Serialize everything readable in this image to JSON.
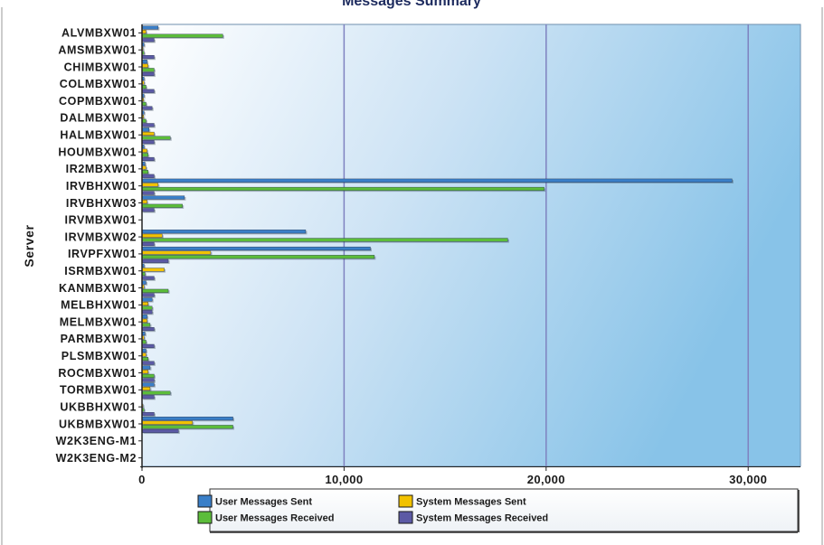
{
  "chart_data": {
    "type": "bar",
    "orientation": "horizontal",
    "title": "Messages Summary",
    "ylabel": "Server",
    "xlabel": "",
    "xlim": [
      0,
      32500
    ],
    "x_ticks": [
      0,
      10000,
      20000,
      30000
    ],
    "x_tick_labels": [
      "0",
      "10,000",
      "20,000",
      "30,000"
    ],
    "grid": "vertical",
    "legend_position": "bottom",
    "categories": [
      "ALVMBXW01",
      "AMSMBXW01",
      "CHIMBXW01",
      "COLMBXW01",
      "COPMBXW01",
      "DALMBXW01",
      "HALMBXW01",
      "HOUMBXW01",
      "IR2MBXW01",
      "IRVBHXW01",
      "IRVBHXW03",
      "IRVMBXW01",
      "IRVMBXW02",
      "IRVPFXW01",
      "ISRMBXW01",
      "KANMBXW01",
      "MELBHXW01",
      "MELMBXW01",
      "PARMBXW01",
      "PLSMBXW01",
      "ROCMBXW01",
      "TORMBXW01",
      "UKBBHXW01",
      "UKBMBXW01",
      "W2K3ENG-M1",
      "W2K3ENG-M2"
    ],
    "series": [
      {
        "name": "User Messages Sent",
        "color": "#3a7fc8",
        "values": [
          800,
          100,
          250,
          100,
          100,
          100,
          350,
          100,
          150,
          29200,
          2100,
          0,
          8100,
          11300,
          100,
          200,
          500,
          250,
          150,
          200,
          400,
          600,
          0,
          4500,
          0,
          0
        ]
      },
      {
        "name": "System Messages Sent",
        "color": "#f2c200",
        "values": [
          200,
          50,
          300,
          100,
          80,
          80,
          600,
          250,
          200,
          800,
          250,
          0,
          1000,
          3400,
          1100,
          100,
          300,
          250,
          100,
          200,
          300,
          400,
          50,
          2500,
          0,
          0
        ]
      },
      {
        "name": "User Messages Received",
        "color": "#5cbd3a",
        "values": [
          4000,
          100,
          600,
          200,
          200,
          200,
          1400,
          300,
          300,
          19900,
          2000,
          0,
          18100,
          11500,
          150,
          1300,
          500,
          400,
          200,
          300,
          600,
          1400,
          100,
          4500,
          0,
          0
        ]
      },
      {
        "name": "System Messages Received",
        "color": "#5c5aa5",
        "values": [
          600,
          600,
          600,
          600,
          500,
          600,
          600,
          600,
          600,
          600,
          600,
          0,
          600,
          1300,
          600,
          600,
          500,
          600,
          600,
          600,
          600,
          600,
          600,
          1800,
          0,
          0
        ]
      }
    ]
  }
}
